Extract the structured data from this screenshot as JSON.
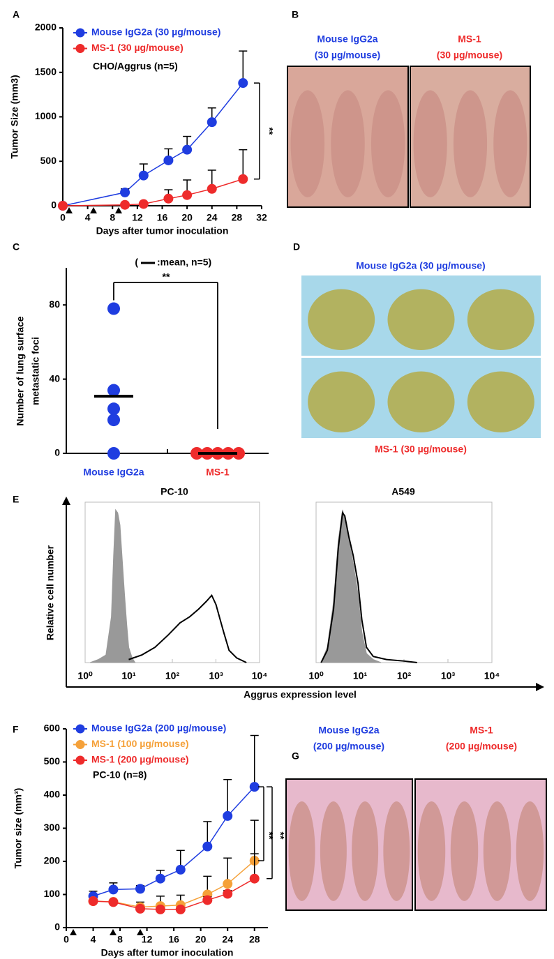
{
  "panel_labels": [
    "A",
    "B",
    "C",
    "D",
    "E",
    "F",
    "G"
  ],
  "photos": [
    {
      "label": [
        "Mouse IgG2a",
        "(30 µg/mouse)"
      ],
      "color": "#1f3de0"
    },
    {
      "label": [
        "MS-1",
        "(30 µg/mouse)"
      ],
      "color": "#ee2b2b"
    },
    {
      "label": [
        "Mouse IgG2a (30 µg/mouse)"
      ],
      "color": "#1f3de0"
    },
    {
      "label": [
        "MS-1 (30 µg/mouse)"
      ],
      "color": "#ee2b2b"
    },
    {
      "label": [
        "Mouse IgG2a",
        "(200 µg/mouse)"
      ],
      "color": "#1f3de0"
    },
    {
      "label": [
        "MS-1",
        "(200 µg/mouse)"
      ],
      "color": "#ee2b2b"
    }
  ],
  "chart_data": [
    {
      "type": "line",
      "x": [
        0,
        10,
        13,
        17,
        20,
        24,
        29
      ],
      "xlim": [
        0,
        32
      ],
      "xticks": [
        0,
        4,
        8,
        12,
        16,
        20,
        24,
        28,
        32
      ],
      "ylim": [
        0,
        2000
      ],
      "yticks": [
        0,
        500,
        1000,
        1500,
        2000
      ],
      "xlabel": "Days after tumor inoculation",
      "ylabel": "Tumor Size (mm3)",
      "series": [
        {
          "name": "Mouse IgG2a (30 µg/mouse)",
          "color": "#1f3de0",
          "values": [
            0,
            150,
            340,
            510,
            630,
            940,
            1380
          ],
          "errors": [
            0,
            40,
            130,
            130,
            150,
            160,
            360
          ]
        },
        {
          "name": "MS-1 (30 µg/mouse)",
          "color": "#ee2b2b",
          "values": [
            0,
            10,
            20,
            80,
            120,
            190,
            300
          ],
          "errors": [
            0,
            0,
            0,
            100,
            170,
            210,
            330
          ]
        }
      ],
      "note": "CHO/Aggrus (n=5)",
      "significance": [
        "**"
      ]
    },
    {
      "type": "dot",
      "categories": [
        "Mouse IgG2a",
        "MS-1"
      ],
      "colors": [
        "#1f3de0",
        "#ee2b2b"
      ],
      "values": [
        [
          0,
          18,
          24,
          34,
          78
        ],
        [
          0,
          0,
          0,
          0,
          0
        ]
      ],
      "means": [
        30.8,
        0
      ],
      "ylim": [
        0,
        100
      ],
      "yticks": [
        0,
        40,
        80
      ],
      "ylabel": [
        "Number of lung surface",
        "metastatic foci"
      ],
      "legend_text": [
        "(",
        ":mean, n=5)"
      ],
      "significance": [
        "**"
      ]
    },
    {
      "type": "area",
      "title": "PC-10",
      "log_x": true,
      "xlim": [
        1,
        10000
      ],
      "xticks": [
        {
          "value": 1,
          "label": "10⁰"
        },
        {
          "value": 10,
          "label": "10¹"
        },
        {
          "value": 100,
          "label": "10²"
        },
        {
          "value": 1000,
          "label": "10³"
        },
        {
          "value": 10000,
          "label": "10⁴"
        }
      ],
      "ylim": [
        0,
        105
      ],
      "xlabel": "Aggrus expression level",
      "ylabel": "Relative cell number",
      "series": [
        {
          "color": "#999999",
          "fill": true,
          "x": [
            1.3,
            2,
            3,
            4,
            4.5,
            5,
            5.6,
            6.3,
            7,
            8,
            9,
            10,
            12,
            14
          ],
          "values": [
            0,
            2,
            5,
            30,
            70,
            100,
            98,
            90,
            70,
            45,
            25,
            10,
            3,
            0
          ]
        },
        {
          "color": "#000000",
          "fill": false,
          "x": [
            10,
            20,
            40,
            80,
            150,
            250,
            400,
            600,
            800,
            1000,
            1500,
            2000,
            3000,
            5000
          ],
          "values": [
            2,
            5,
            10,
            18,
            26,
            30,
            35,
            40,
            44,
            38,
            20,
            8,
            3,
            0
          ]
        }
      ]
    },
    {
      "type": "area",
      "title": "A549",
      "log_x": true,
      "xlim": [
        1,
        10000
      ],
      "xticks": [
        {
          "value": 1,
          "label": "10⁰"
        },
        {
          "value": 10,
          "label": "10¹"
        },
        {
          "value": 100,
          "label": "10²"
        },
        {
          "value": 1000,
          "label": "10³"
        },
        {
          "value": 10000,
          "label": "10⁴"
        }
      ],
      "ylim": [
        0,
        105
      ],
      "series": [
        {
          "color": "#999999",
          "fill": true,
          "x": [
            1.3,
            1.8,
            2.5,
            3.2,
            4,
            4.5,
            5.6,
            7,
            9,
            11,
            14,
            20,
            30
          ],
          "values": [
            0,
            10,
            40,
            80,
            100,
            95,
            80,
            65,
            45,
            20,
            6,
            2,
            0
          ]
        },
        {
          "color": "#000000",
          "fill": false,
          "x": [
            1.3,
            1.8,
            2.5,
            3.2,
            4,
            4.5,
            5.6,
            7,
            9,
            11,
            14,
            20,
            40,
            100,
            200
          ],
          "values": [
            0,
            8,
            35,
            75,
            98,
            96,
            82,
            70,
            52,
            28,
            10,
            4,
            2,
            1,
            0
          ]
        }
      ]
    },
    {
      "type": "line",
      "x": [
        4,
        7,
        11,
        14,
        17,
        21,
        24,
        28
      ],
      "xlim": [
        0,
        30
      ],
      "xticks": [
        0,
        4,
        8,
        12,
        16,
        20,
        24,
        28
      ],
      "ylim": [
        0,
        600
      ],
      "yticks": [
        0,
        100,
        200,
        300,
        400,
        500,
        600
      ],
      "xlabel": "Days after tumor inoculation",
      "ylabel": "Tumor size (mm³)",
      "series": [
        {
          "name": "Mouse IgG2a (200 µg/mouse)",
          "color": "#1f3de0",
          "values": [
            95,
            115,
            117,
            148,
            175,
            245,
            337,
            425
          ],
          "errors": [
            15,
            20,
            10,
            25,
            58,
            75,
            110,
            155
          ]
        },
        {
          "name": "MS-1 (100 µg/mouse)",
          "color": "#f5a13a",
          "values": [
            80,
            78,
            62,
            65,
            68,
            100,
            132,
            202
          ],
          "errors": [
            0,
            0,
            15,
            30,
            30,
            55,
            78,
            122
          ]
        },
        {
          "name": "MS-1 (200 µg/mouse)",
          "color": "#ee2b2b",
          "values": [
            80,
            77,
            57,
            55,
            55,
            83,
            102,
            148
          ],
          "errors": [
            5,
            5,
            5,
            5,
            5,
            10,
            10,
            75
          ]
        }
      ],
      "note": "PC-10 (n=8)",
      "significance": [
        "**",
        "**"
      ]
    }
  ]
}
